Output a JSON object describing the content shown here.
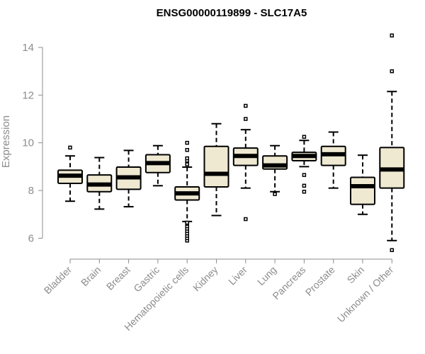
{
  "chart_data": {
    "type": "boxplot",
    "title": "ENSG00000119899 - SLC17A5",
    "xlabel": "",
    "ylabel": "Expression",
    "ylim": [
      5.3,
      14.8
    ],
    "yticks": [
      6,
      8,
      10,
      12,
      14
    ],
    "box_fill": "#efe9d2",
    "stroke": "#000000",
    "text_color": "#8c8c8c",
    "categories": [
      "Bladder",
      "Brain",
      "Breast",
      "Gastric",
      "Hematopoietic cells",
      "Kidney",
      "Liver",
      "Lung",
      "Pancreas",
      "Prostate",
      "Skin",
      "Unknown / Other"
    ],
    "series": [
      {
        "name": "Bladder",
        "whisker_low": 7.55,
        "q1": 8.3,
        "median": 8.62,
        "q3": 8.85,
        "whisker_high": 9.45,
        "outliers": [
          9.8
        ]
      },
      {
        "name": "Brain",
        "whisker_low": 7.22,
        "q1": 7.95,
        "median": 8.25,
        "q3": 8.65,
        "whisker_high": 9.38,
        "outliers": []
      },
      {
        "name": "Breast",
        "whisker_low": 7.32,
        "q1": 8.05,
        "median": 8.55,
        "q3": 8.98,
        "whisker_high": 9.68,
        "outliers": []
      },
      {
        "name": "Gastric",
        "whisker_low": 8.2,
        "q1": 8.75,
        "median": 9.15,
        "q3": 9.5,
        "whisker_high": 9.88,
        "outliers": []
      },
      {
        "name": "Hematopoietic cells",
        "whisker_low": 6.7,
        "q1": 7.6,
        "median": 7.88,
        "q3": 8.15,
        "whisker_high": 8.98,
        "outliers": [
          5.9,
          6.0,
          6.1,
          6.2,
          6.3,
          6.4,
          6.5,
          6.6,
          6.65,
          9.1,
          9.25,
          9.35,
          9.7,
          10.0
        ]
      },
      {
        "name": "Kidney",
        "whisker_low": 6.95,
        "q1": 8.15,
        "median": 8.7,
        "q3": 9.85,
        "whisker_high": 10.8,
        "outliers": []
      },
      {
        "name": "Liver",
        "whisker_low": 8.1,
        "q1": 9.05,
        "median": 9.45,
        "q3": 9.78,
        "whisker_high": 10.55,
        "outliers": [
          6.8,
          11.0,
          11.55
        ]
      },
      {
        "name": "Lung",
        "whisker_low": 7.95,
        "q1": 8.9,
        "median": 9.05,
        "q3": 9.45,
        "whisker_high": 9.88,
        "outliers": [
          7.85
        ]
      },
      {
        "name": "Pancreas",
        "whisker_low": 9.0,
        "q1": 9.25,
        "median": 9.45,
        "q3": 9.6,
        "whisker_high": 10.1,
        "outliers": [
          7.95,
          8.2,
          8.65,
          10.25
        ]
      },
      {
        "name": "Prostate",
        "whisker_low": 8.1,
        "q1": 9.05,
        "median": 9.52,
        "q3": 9.85,
        "whisker_high": 10.45,
        "outliers": []
      },
      {
        "name": "Skin",
        "whisker_low": 7.0,
        "q1": 7.42,
        "median": 8.18,
        "q3": 8.55,
        "whisker_high": 9.48,
        "outliers": []
      },
      {
        "name": "Unknown / Other",
        "whisker_low": 5.9,
        "q1": 8.1,
        "median": 8.88,
        "q3": 9.8,
        "whisker_high": 12.15,
        "outliers": [
          5.5,
          13.0,
          14.5
        ]
      }
    ]
  }
}
